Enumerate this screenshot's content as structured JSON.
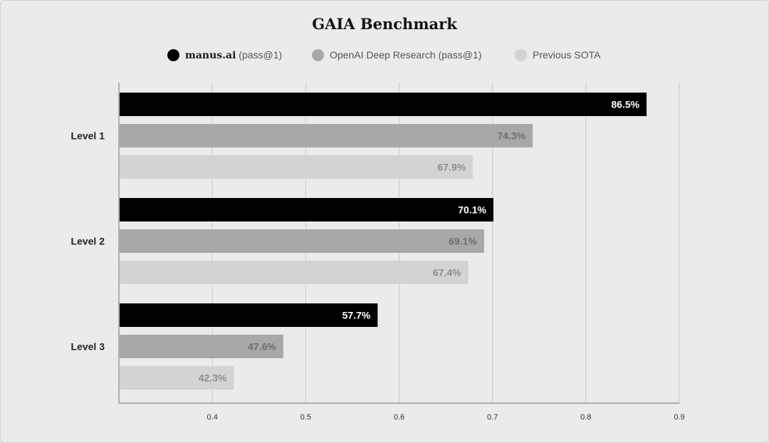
{
  "chart_data": {
    "type": "bar",
    "orientation": "horizontal",
    "title": "GAIA Benchmark",
    "categories": [
      "Level 1",
      "Level 2",
      "Level 3"
    ],
    "series": [
      {
        "name_main": "manus.ai",
        "name_suffix": "(pass@1)",
        "color": "#000000",
        "label_color": "#ffffff",
        "values": [
          0.865,
          0.701,
          0.577
        ],
        "labels": [
          "86.5%",
          "70.1%",
          "57.7%"
        ]
      },
      {
        "name_main": "",
        "name_suffix": "OpenAI Deep Research (pass@1)",
        "color": "#a8a8aa",
        "label_color": "#6e6e6e",
        "values": [
          0.743,
          0.691,
          0.476
        ],
        "labels": [
          "74.3%",
          "69.1%",
          "47.6%"
        ]
      },
      {
        "name_main": "",
        "name_suffix": "Previous SOTA",
        "color": "#d3d3d5",
        "label_color": "#8c8c8c",
        "values": [
          0.679,
          0.674,
          0.423
        ],
        "labels": [
          "67.9%",
          "67.4%",
          "42.3%"
        ]
      }
    ],
    "xlim": [
      0.3,
      0.9
    ],
    "xticks": [
      0.4,
      0.5,
      0.6,
      0.7,
      0.8,
      0.9
    ],
    "xtick_labels": [
      "0.4",
      "0.5",
      "0.6",
      "0.7",
      "0.8",
      "0.9"
    ],
    "grid": "vertical",
    "legend": "top-center"
  }
}
